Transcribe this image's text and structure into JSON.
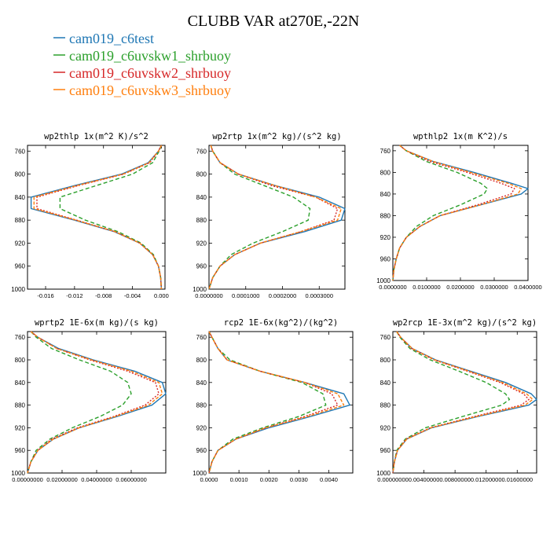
{
  "figure": {
    "title": "CLUBB VAR at270E,-22N",
    "legend": [
      {
        "label": "cam019_c6test",
        "color": "#1f77b4"
      },
      {
        "label": "cam019_c6uvskw1_shrbuoy",
        "color": "#2ca02c"
      },
      {
        "label": "cam019_c6uvskw2_shrbuoy",
        "color": "#d62728"
      },
      {
        "label": "cam019_c6uvskw3_shrbuoy",
        "color": "#ff7f0e"
      }
    ]
  },
  "chart_data": [
    {
      "type": "line",
      "title": "wp2thlp   1x(m^2 K)/s^2",
      "xlim": [
        -0.0185,
        0.0005
      ],
      "ylim": [
        1000,
        750
      ],
      "xticks": [
        -0.016,
        -0.012,
        -0.008,
        -0.004,
        0.0
      ],
      "xtick_labels": [
        "-0.016",
        "-0.012",
        "-0.008",
        "-0.004",
        "0.000"
      ],
      "yticks": [
        760,
        800,
        840,
        880,
        920,
        960,
        1000
      ],
      "ytick_labels": [
        "760",
        "800",
        "840",
        "880",
        "920",
        "960",
        "1000"
      ],
      "y": [
        750,
        760,
        780,
        800,
        820,
        840,
        860,
        880,
        900,
        920,
        940,
        960,
        980,
        1000
      ],
      "series": [
        {
          "name": "cam019_c6test",
          "color": "#1f77b4",
          "dash": "",
          "values": [
            0.0,
            -0.0004,
            -0.0018,
            -0.0055,
            -0.012,
            -0.018,
            -0.018,
            -0.012,
            -0.0065,
            -0.003,
            -0.0012,
            -0.0004,
            -0.0001,
            0.0
          ]
        },
        {
          "name": "cam019_c6uvskw1_shrbuoy",
          "color": "#2ca02c",
          "dash": "5,3",
          "values": [
            0.0,
            -0.0003,
            -0.0012,
            -0.004,
            -0.009,
            -0.014,
            -0.014,
            -0.0105,
            -0.006,
            -0.0028,
            -0.0011,
            -0.0004,
            -0.0001,
            0.0
          ]
        },
        {
          "name": "cam019_c6uvskw2_shrbuoy",
          "color": "#d62728",
          "dash": "2,2",
          "values": [
            0.0,
            -0.0004,
            -0.0016,
            -0.0052,
            -0.0115,
            -0.0172,
            -0.0172,
            -0.0117,
            -0.0064,
            -0.003,
            -0.0012,
            -0.0004,
            -0.0001,
            0.0
          ]
        },
        {
          "name": "cam019_c6uvskw3_shrbuoy",
          "color": "#ff7f0e",
          "dash": "4,2",
          "values": [
            0.0,
            -0.0004,
            -0.0017,
            -0.0053,
            -0.0117,
            -0.0176,
            -0.0176,
            -0.0118,
            -0.0064,
            -0.003,
            -0.0012,
            -0.0004,
            -0.0001,
            0.0
          ]
        }
      ]
    },
    {
      "type": "line",
      "title": "wp2rtp   1x(m^2 kg)/(s^2 kg)",
      "xlim": [
        0.0,
        0.00037
      ],
      "ylim": [
        1000,
        750
      ],
      "xticks": [
        0.0,
        0.0001,
        0.0002,
        0.0003
      ],
      "xtick_labels": [
        "0.0000000",
        "0.0001000",
        "0.0002000",
        "0.0003000"
      ],
      "yticks": [
        760,
        800,
        840,
        880,
        920,
        960,
        1000
      ],
      "ytick_labels": [
        "760",
        "800",
        "840",
        "880",
        "920",
        "960",
        "1000"
      ],
      "y": [
        750,
        760,
        780,
        800,
        820,
        840,
        860,
        880,
        900,
        920,
        940,
        960,
        980,
        1000
      ],
      "series": [
        {
          "name": "cam019_c6test",
          "color": "#1f77b4",
          "dash": "",
          "values": [
            5e-06,
            1e-05,
            3e-05,
            8e-05,
            0.00018,
            0.0003,
            0.00037,
            0.00036,
            0.00026,
            0.00014,
            7e-05,
            3e-05,
            1e-05,
            0.0
          ]
        },
        {
          "name": "cam019_c6uvskw1_shrbuoy",
          "color": "#2ca02c",
          "dash": "5,3",
          "values": [
            5e-06,
            1e-05,
            3e-05,
            7e-05,
            0.00015,
            0.00023,
            0.000275,
            0.00027,
            0.0002,
            0.00012,
            6e-05,
            3e-05,
            1e-05,
            0.0
          ]
        },
        {
          "name": "cam019_c6uvskw2_shrbuoy",
          "color": "#d62728",
          "dash": "2,2",
          "values": [
            5e-06,
            1e-05,
            3e-05,
            8e-05,
            0.00017,
            0.00029,
            0.00035,
            0.00034,
            0.00025,
            0.00014,
            7e-05,
            3e-05,
            1e-05,
            0.0
          ]
        },
        {
          "name": "cam019_c6uvskw3_shrbuoy",
          "color": "#ff7f0e",
          "dash": "4,2",
          "values": [
            5e-06,
            1e-05,
            3e-05,
            8e-05,
            0.00018,
            0.00029,
            0.00036,
            0.00035,
            0.00025,
            0.00014,
            7e-05,
            3e-05,
            1e-05,
            0.0
          ]
        }
      ]
    },
    {
      "type": "line",
      "title": "wpthlp2   1x(m K^2)/s",
      "xlim": [
        0.0,
        0.04
      ],
      "ylim": [
        1000,
        750
      ],
      "xticks": [
        0.0,
        0.01,
        0.02,
        0.03,
        0.04
      ],
      "xtick_labels": [
        "0.0000000",
        "0.0100000",
        "0.0200000",
        "0.0300000",
        "0.0400000"
      ],
      "yticks": [
        760,
        800,
        840,
        880,
        920,
        960,
        1000
      ],
      "ytick_labels": [
        "760",
        "800",
        "840",
        "880",
        "920",
        "960",
        "1000"
      ],
      "y": [
        750,
        760,
        780,
        800,
        820,
        830,
        840,
        860,
        880,
        900,
        920,
        940,
        960,
        980,
        1000
      ],
      "series": [
        {
          "name": "cam019_c6test",
          "color": "#1f77b4",
          "dash": "",
          "values": [
            0.002,
            0.004,
            0.012,
            0.024,
            0.035,
            0.04,
            0.038,
            0.026,
            0.014,
            0.008,
            0.004,
            0.002,
            0.001,
            0.0003,
            0.0
          ]
        },
        {
          "name": "cam019_c6uvskw1_shrbuoy",
          "color": "#2ca02c",
          "dash": "5,3",
          "values": [
            0.002,
            0.004,
            0.01,
            0.019,
            0.026,
            0.028,
            0.027,
            0.02,
            0.012,
            0.007,
            0.004,
            0.002,
            0.001,
            0.0003,
            0.0
          ]
        },
        {
          "name": "cam019_c6uvskw2_shrbuoy",
          "color": "#d62728",
          "dash": "2,2",
          "values": [
            0.002,
            0.004,
            0.011,
            0.022,
            0.032,
            0.036,
            0.035,
            0.025,
            0.014,
            0.008,
            0.004,
            0.002,
            0.001,
            0.0003,
            0.0
          ]
        },
        {
          "name": "cam019_c6uvskw3_shrbuoy",
          "color": "#ff7f0e",
          "dash": "4,2",
          "values": [
            0.002,
            0.004,
            0.012,
            0.023,
            0.034,
            0.038,
            0.037,
            0.026,
            0.014,
            0.008,
            0.004,
            0.002,
            0.001,
            0.0003,
            0.0
          ]
        }
      ]
    },
    {
      "type": "line",
      "title": "wprtp2   1E-6x(m kg)/(s kg)",
      "xlim": [
        0.0,
        0.08
      ],
      "ylim": [
        1000,
        750
      ],
      "xticks": [
        0.0,
        0.02,
        0.04,
        0.06
      ],
      "xtick_labels": [
        "0.00000000",
        "0.02000000",
        "0.04000000",
        "0.06000000"
      ],
      "yticks": [
        760,
        800,
        840,
        880,
        920,
        960,
        1000
      ],
      "ytick_labels": [
        "760",
        "800",
        "840",
        "880",
        "920",
        "960",
        "1000"
      ],
      "y": [
        750,
        760,
        780,
        800,
        820,
        840,
        860,
        880,
        900,
        920,
        940,
        960,
        980,
        1000
      ],
      "series": [
        {
          "name": "cam019_c6test",
          "color": "#1f77b4",
          "dash": "",
          "values": [
            0.002,
            0.006,
            0.018,
            0.038,
            0.062,
            0.078,
            0.08,
            0.072,
            0.052,
            0.03,
            0.015,
            0.006,
            0.002,
            0.0
          ]
        },
        {
          "name": "cam019_c6uvskw1_shrbuoy",
          "color": "#2ca02c",
          "dash": "5,3",
          "values": [
            0.002,
            0.005,
            0.014,
            0.03,
            0.048,
            0.058,
            0.06,
            0.055,
            0.042,
            0.026,
            0.013,
            0.005,
            0.002,
            0.0
          ]
        },
        {
          "name": "cam019_c6uvskw2_shrbuoy",
          "color": "#d62728",
          "dash": "2,2",
          "values": [
            0.002,
            0.006,
            0.017,
            0.036,
            0.058,
            0.074,
            0.076,
            0.068,
            0.05,
            0.029,
            0.014,
            0.006,
            0.002,
            0.0
          ]
        },
        {
          "name": "cam019_c6uvskw3_shrbuoy",
          "color": "#ff7f0e",
          "dash": "4,2",
          "values": [
            0.002,
            0.006,
            0.017,
            0.037,
            0.06,
            0.076,
            0.078,
            0.07,
            0.051,
            0.03,
            0.015,
            0.006,
            0.002,
            0.0
          ]
        }
      ]
    },
    {
      "type": "line",
      "title": "rcp2   1E-6x(kg^2)/(kg^2)",
      "xlim": [
        0.0,
        0.0048
      ],
      "ylim": [
        1000,
        750
      ],
      "xticks": [
        0.0,
        0.001,
        0.002,
        0.003,
        0.004
      ],
      "xtick_labels": [
        "0.0000",
        "0.0010",
        "0.0020",
        "0.0030",
        "0.0040"
      ],
      "yticks": [
        760,
        800,
        840,
        880,
        920,
        960,
        1000
      ],
      "ytick_labels": [
        "760",
        "800",
        "840",
        "880",
        "920",
        "960",
        "1000"
      ],
      "y": [
        750,
        760,
        780,
        800,
        820,
        840,
        860,
        880,
        900,
        920,
        940,
        960,
        980,
        1000
      ],
      "series": [
        {
          "name": "cam019_c6test",
          "color": "#1f77b4",
          "dash": "",
          "values": [
            0.0,
            0.0001,
            0.0003,
            0.0006,
            0.0017,
            0.0032,
            0.0045,
            0.0047,
            0.0034,
            0.002,
            0.0009,
            0.0003,
            0.0001,
            0.0
          ]
        },
        {
          "name": "cam019_c6uvskw1_shrbuoy",
          "color": "#2ca02c",
          "dash": "5,3",
          "values": [
            0.0,
            0.0001,
            0.0003,
            0.0007,
            0.0017,
            0.0031,
            0.0038,
            0.0039,
            0.003,
            0.0018,
            0.0008,
            0.0003,
            0.0001,
            0.0
          ]
        },
        {
          "name": "cam019_c6uvskw2_shrbuoy",
          "color": "#d62728",
          "dash": "2,2",
          "values": [
            0.0,
            0.0001,
            0.0003,
            0.0006,
            0.0017,
            0.0032,
            0.0041,
            0.0043,
            0.0032,
            0.0019,
            0.0009,
            0.0003,
            0.0001,
            0.0
          ]
        },
        {
          "name": "cam019_c6uvskw3_shrbuoy",
          "color": "#ff7f0e",
          "dash": "4,2",
          "values": [
            0.0,
            0.0001,
            0.0003,
            0.0006,
            0.0017,
            0.0032,
            0.0043,
            0.0045,
            0.0033,
            0.0019,
            0.0009,
            0.0003,
            0.0001,
            0.0
          ]
        }
      ]
    },
    {
      "type": "line",
      "title": "wp2rcp   1E-3x(m^2 kg)/(s^2 kg)",
      "xlim": [
        0.0,
        0.0185
      ],
      "ylim": [
        1000,
        750
      ],
      "xticks": [
        0.0,
        0.004,
        0.008,
        0.012,
        0.016
      ],
      "xtick_labels": [
        "0.00000000",
        "0.00400000",
        "0.00800000",
        "0.01200000",
        "0.01600000"
      ],
      "yticks": [
        760,
        800,
        840,
        880,
        920,
        960,
        1000
      ],
      "ytick_labels": [
        "760",
        "800",
        "840",
        "880",
        "920",
        "960",
        "1000"
      ],
      "y": [
        750,
        760,
        780,
        800,
        820,
        840,
        860,
        870,
        880,
        900,
        920,
        940,
        960,
        980,
        1000
      ],
      "series": [
        {
          "name": "cam019_c6test",
          "color": "#1f77b4",
          "dash": "",
          "values": [
            0.0005,
            0.001,
            0.0025,
            0.0055,
            0.01,
            0.0145,
            0.0178,
            0.0185,
            0.0175,
            0.011,
            0.005,
            0.0018,
            0.0006,
            0.0002,
            0.0
          ]
        },
        {
          "name": "cam019_c6uvskw1_shrbuoy",
          "color": "#2ca02c",
          "dash": "5,3",
          "values": [
            0.0005,
            0.0009,
            0.0022,
            0.0048,
            0.0085,
            0.012,
            0.0145,
            0.015,
            0.014,
            0.009,
            0.0042,
            0.0016,
            0.0005,
            0.0002,
            0.0
          ]
        },
        {
          "name": "cam019_c6uvskw2_shrbuoy",
          "color": "#d62728",
          "dash": "2,2",
          "values": [
            0.0005,
            0.001,
            0.0024,
            0.0053,
            0.0096,
            0.0138,
            0.0168,
            0.0175,
            0.0165,
            0.0105,
            0.0048,
            0.0017,
            0.0006,
            0.0002,
            0.0
          ]
        },
        {
          "name": "cam019_c6uvskw3_shrbuoy",
          "color": "#ff7f0e",
          "dash": "4,2",
          "values": [
            0.0005,
            0.001,
            0.0025,
            0.0054,
            0.0098,
            0.0141,
            0.0172,
            0.018,
            0.017,
            0.0108,
            0.0049,
            0.0018,
            0.0006,
            0.0002,
            0.0
          ]
        }
      ]
    }
  ]
}
